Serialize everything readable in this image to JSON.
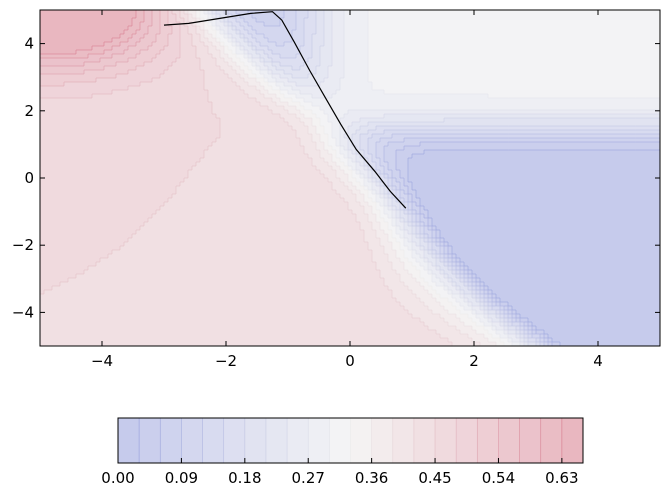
{
  "chart_data": {
    "type": "contourf",
    "title": "",
    "xlabel": "",
    "ylabel": "",
    "xlim": [
      -5,
      5
    ],
    "ylim": [
      -5,
      5
    ],
    "grid": false,
    "x_ticks": [
      -4,
      -2,
      0,
      2,
      4
    ],
    "y_ticks": [
      -4,
      -2,
      0,
      2,
      4
    ],
    "x_tick_labels": [
      "−4",
      "−2",
      "0",
      "2",
      "4"
    ],
    "y_tick_labels": [
      "−4",
      "−2",
      "0",
      "2",
      "4"
    ],
    "colormap": "coolwarm",
    "colormap_range": [
      "#3b4cc0",
      "#dddddd",
      "#b40426"
    ],
    "levels": [
      0.0,
      0.03,
      0.06,
      0.09,
      0.12,
      0.15,
      0.18,
      0.21,
      0.24,
      0.27,
      0.3,
      0.33,
      0.36,
      0.39,
      0.42,
      0.45,
      0.48,
      0.51,
      0.54,
      0.57,
      0.6,
      0.63,
      0.66
    ],
    "colorbar": {
      "orientation": "horizontal",
      "placement": "bottom",
      "ticks": [
        0.0,
        0.09,
        0.18,
        0.27,
        0.36,
        0.45,
        0.54,
        0.63
      ],
      "tick_labels": [
        "0.00",
        "0.09",
        "0.18",
        "0.27",
        "0.36",
        "0.45",
        "0.54",
        "0.63"
      ]
    },
    "path": {
      "color": "#000000",
      "points": [
        [
          -3.0,
          4.55
        ],
        [
          -2.6,
          4.6
        ],
        [
          -2.1,
          4.75
        ],
        [
          -1.6,
          4.9
        ],
        [
          -1.25,
          4.95
        ],
        [
          -1.1,
          4.7
        ],
        [
          -0.9,
          4.05
        ],
        [
          -0.65,
          3.2
        ],
        [
          -0.4,
          2.4
        ],
        [
          -0.15,
          1.6
        ],
        [
          0.1,
          0.85
        ],
        [
          0.4,
          0.2
        ],
        [
          0.65,
          -0.4
        ],
        [
          0.9,
          -0.9
        ]
      ]
    }
  }
}
